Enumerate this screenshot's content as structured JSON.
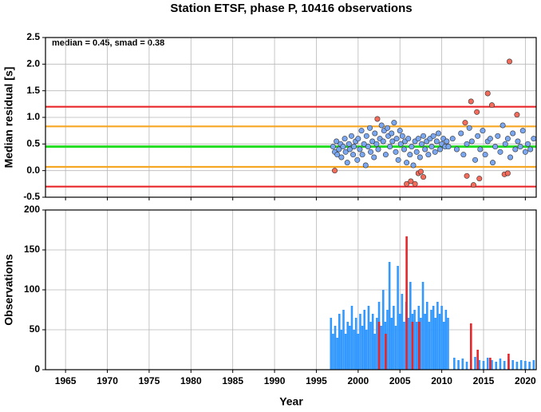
{
  "chart_data": [
    {
      "type": "scatter",
      "title": "Station ETSF, phase P, 10416 observations",
      "ylabel": "Median residual [s]",
      "annotation": "median = 0.45, smad = 0.38",
      "xlim": [
        1962.6,
        2021.3
      ],
      "xticks": [
        1965,
        1970,
        1975,
        1980,
        1985,
        1990,
        1995,
        2000,
        2005,
        2010,
        2015,
        2020
      ],
      "ylim": [
        -0.5,
        2.5
      ],
      "yticks": [
        -0.5,
        {
          "value": 0,
          "label": "0.0"
        },
        0.5,
        {
          "value": 1,
          "label": "1.0"
        },
        1.5,
        {
          "value": 2,
          "label": "2.0"
        },
        2.5
      ],
      "grid": true,
      "hlines": [
        {
          "value": 1.2,
          "color": "#e8262a"
        },
        {
          "value": -0.3,
          "color": "#e8262a"
        },
        {
          "value": 0.83,
          "color": "#f5a623"
        },
        {
          "value": 0.07,
          "color": "#f5a623"
        },
        {
          "value": 0.45,
          "color": "#22dd22"
        }
      ],
      "series": [
        {
          "color": "#7aa7f0",
          "x": [
            1997.0,
            1997.2,
            1997.4,
            1997.5,
            1997.7,
            1997.9,
            1998.0,
            1998.2,
            1998.4,
            1998.5,
            1998.7,
            1998.9,
            1999.0,
            1999.2,
            1999.4,
            1999.5,
            1999.7,
            1999.9,
            2000.0,
            2000.2,
            2000.4,
            2000.5,
            2000.7,
            2000.9,
            2001.0,
            2001.2,
            2001.4,
            2001.5,
            2001.7,
            2001.9,
            2002.0,
            2002.2,
            2002.4,
            2002.6,
            2002.8,
            2003.0,
            2003.1,
            2003.3,
            2003.5,
            2003.6,
            2003.8,
            2004.0,
            2004.1,
            2004.3,
            2004.5,
            2004.6,
            2004.8,
            2005.0,
            2005.1,
            2005.3,
            2005.5,
            2005.6,
            2005.8,
            2006.0,
            2006.2,
            2006.4,
            2006.6,
            2006.8,
            2007.0,
            2007.2,
            2007.4,
            2007.6,
            2007.8,
            2008.0,
            2008.2,
            2008.4,
            2008.6,
            2008.8,
            2009.0,
            2009.2,
            2009.4,
            2009.6,
            2009.8,
            2010.0,
            2010.2,
            2010.4,
            2010.6,
            2010.8,
            2011.3,
            2011.8,
            2012.3,
            2012.6,
            2013.0,
            2013.3,
            2013.6,
            2014.0,
            2014.3,
            2014.6,
            2014.9,
            2015.2,
            2015.5,
            2015.8,
            2016.1,
            2016.4,
            2016.7,
            2017.0,
            2017.3,
            2017.6,
            2017.9,
            2018.2,
            2018.5,
            2018.8,
            2019.1,
            2019.4,
            2019.7,
            2020.0,
            2020.3,
            2020.6,
            2021.0
          ],
          "values": [
            0.45,
            0.35,
            0.55,
            0.3,
            0.4,
            0.5,
            0.25,
            0.45,
            0.6,
            0.35,
            0.15,
            0.5,
            0.4,
            0.65,
            0.3,
            0.45,
            0.55,
            0.2,
            0.6,
            0.4,
            0.75,
            0.3,
            0.5,
            0.1,
            0.65,
            0.45,
            0.8,
            0.35,
            0.55,
            0.25,
            0.7,
            0.5,
            0.4,
            0.6,
            0.85,
            0.55,
            0.75,
            0.3,
            0.8,
            0.65,
            0.45,
            0.7,
            0.55,
            0.9,
            0.35,
            0.6,
            0.2,
            0.75,
            0.5,
            0.65,
            0.4,
            0.55,
            0.15,
            0.6,
            0.3,
            0.45,
            0.1,
            0.55,
            0.35,
            0.6,
            0.25,
            0.5,
            0.65,
            0.4,
            0.55,
            0.3,
            0.6,
            0.45,
            0.65,
            0.35,
            0.55,
            0.7,
            0.4,
            0.5,
            0.6,
            0.45,
            0.55,
            0.45,
            0.6,
            0.4,
            0.7,
            0.3,
            0.5,
            0.8,
            0.55,
            0.2,
            0.65,
            0.4,
            0.75,
            0.3,
            0.55,
            0.6,
            0.15,
            0.45,
            0.65,
            0.35,
            0.85,
            0.5,
            0.6,
            0.25,
            0.7,
            0.4,
            0.55,
            0.45,
            0.75,
            0.35,
            0.5,
            0.4,
            0.6
          ]
        },
        {
          "color": "#f26b5b",
          "x": [
            1997.2,
            2002.3,
            2005.8,
            2006.3,
            2006.8,
            2007.2,
            2007.5,
            2007.8,
            2012.8,
            2013.0,
            2013.5,
            2013.8,
            2014.2,
            2014.5,
            2015.5,
            2016.0,
            2017.5,
            2017.9,
            2018.1,
            2019.0
          ],
          "values": [
            0.0,
            0.97,
            -0.25,
            -0.2,
            -0.25,
            -0.05,
            -0.02,
            -0.12,
            0.9,
            -0.1,
            1.3,
            -0.27,
            1.1,
            -0.15,
            1.45,
            1.23,
            -0.07,
            -0.05,
            2.05,
            1.05
          ]
        }
      ]
    },
    {
      "type": "bar",
      "ylabel": "Observations",
      "xlabel": "Year",
      "xlim": [
        1962.6,
        2021.3
      ],
      "xticks": [
        1965,
        1970,
        1975,
        1980,
        1985,
        1990,
        1995,
        2000,
        2005,
        2010,
        2015,
        2020
      ],
      "ylim": [
        0,
        200
      ],
      "yticks": [
        0,
        50,
        100,
        150,
        200
      ],
      "grid": true,
      "series": [
        {
          "color": "#3399ff",
          "x": [
            1996.75,
            1997.0,
            1997.25,
            1997.5,
            1997.75,
            1998.0,
            1998.25,
            1998.5,
            1998.75,
            1999.0,
            1999.25,
            1999.5,
            1999.75,
            2000.0,
            2000.25,
            2000.5,
            2000.75,
            2001.0,
            2001.25,
            2001.5,
            2001.75,
            2002.0,
            2002.25,
            2002.5,
            2002.75,
            2003.0,
            2003.25,
            2003.5,
            2003.75,
            2004.0,
            2004.25,
            2004.5,
            2004.75,
            2005.0,
            2005.25,
            2005.5,
            2005.75,
            2006.0,
            2006.25,
            2006.5,
            2006.75,
            2007.0,
            2007.25,
            2007.5,
            2007.75,
            2008.0,
            2008.25,
            2008.5,
            2008.75,
            2009.0,
            2009.25,
            2009.5,
            2009.75,
            2010.0,
            2010.25,
            2010.5,
            2010.75,
            2011.5,
            2012.0,
            2012.5,
            2013.0,
            2013.5,
            2014.0,
            2014.5,
            2015.0,
            2015.5,
            2016.0,
            2016.5,
            2017.0,
            2017.5,
            2018.0,
            2018.5,
            2019.0,
            2019.5,
            2020.0,
            2020.5,
            2021.0
          ],
          "values": [
            65,
            45,
            55,
            40,
            70,
            50,
            75,
            45,
            60,
            55,
            80,
            50,
            65,
            45,
            70,
            55,
            75,
            50,
            80,
            60,
            70,
            45,
            65,
            85,
            55,
            100,
            60,
            75,
            135,
            65,
            80,
            55,
            130,
            70,
            95,
            60,
            85,
            65,
            110,
            70,
            75,
            60,
            80,
            65,
            110,
            70,
            85,
            60,
            75,
            80,
            65,
            85,
            70,
            80,
            60,
            75,
            65,
            15,
            12,
            14,
            10,
            13,
            16,
            12,
            11,
            15,
            12,
            10,
            14,
            11,
            13,
            12,
            10,
            12,
            11,
            10,
            12
          ]
        },
        {
          "color": "#e8262a",
          "x": [
            2002.5,
            2003.3,
            2005.8,
            2006.5,
            2007.3,
            2013.5,
            2014.3,
            2015.8,
            2018.0
          ],
          "values": [
            60,
            45,
            167,
            60,
            60,
            58,
            25,
            15,
            20
          ]
        }
      ]
    }
  ]
}
